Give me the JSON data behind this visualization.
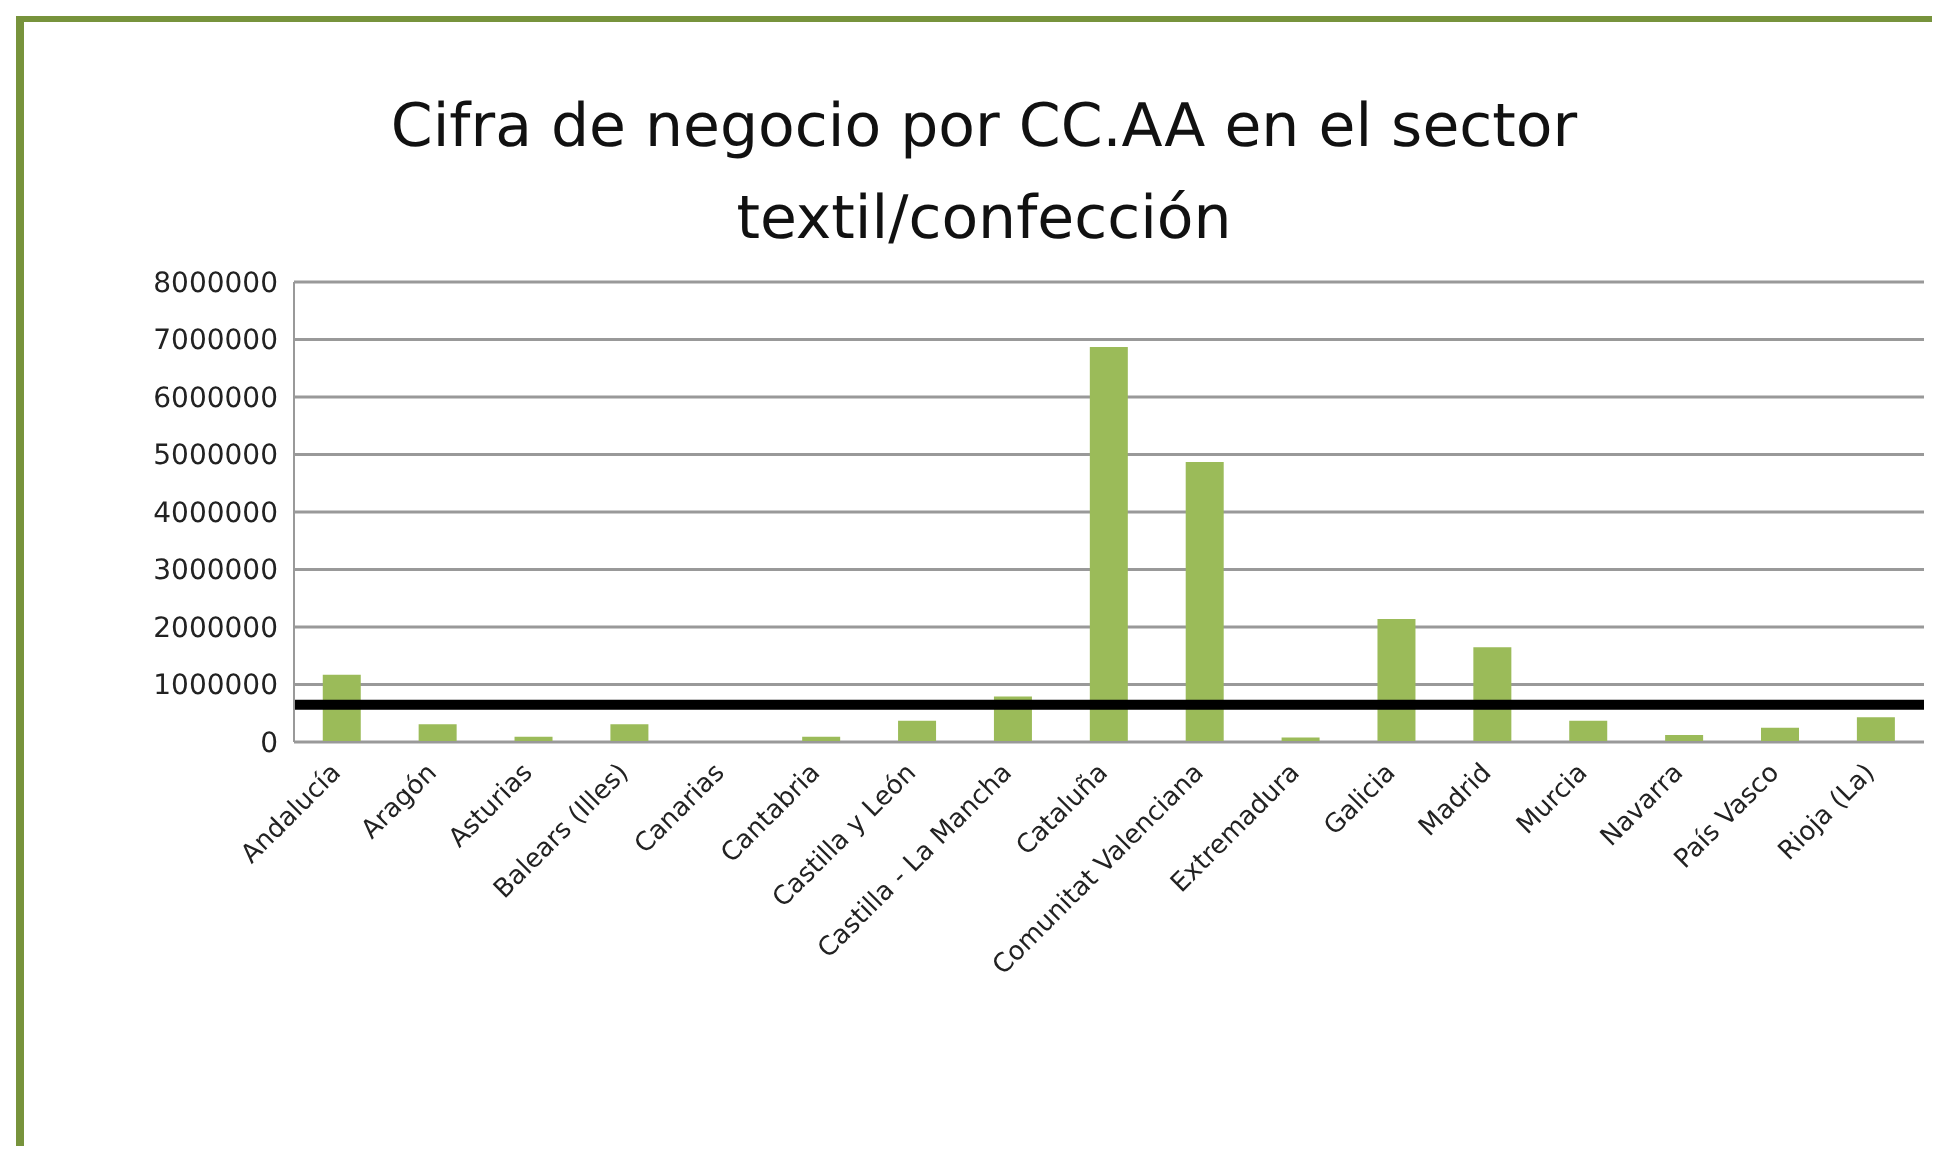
{
  "chart_data": {
    "type": "bar",
    "title": "Cifra de negocio por CC.AA en el sector textil/confección",
    "categories": [
      "Andalucía",
      "Aragón",
      "Asturias",
      "Balears (Illes)",
      "Canarias",
      "Cantabria",
      "Castilla y León",
      "Castilla - La Mancha",
      "Cataluña",
      "Comunitat Valenciana",
      "Extremadura",
      "Galicia",
      "Madrid",
      "Murcia",
      "Navarra",
      "País Vasco",
      "Rioja (La)"
    ],
    "values": [
      1170000,
      310000,
      90000,
      310000,
      0,
      90000,
      370000,
      790000,
      6870000,
      4870000,
      80000,
      2140000,
      1650000,
      370000,
      120000,
      250000,
      430000
    ],
    "color": "#9bbb59",
    "ylim": [
      0,
      8000000
    ],
    "yticks": [
      0,
      1000000,
      2000000,
      3000000,
      4000000,
      5000000,
      6000000,
      7000000,
      8000000
    ],
    "grid": "y",
    "legend": false,
    "ref_lines": [
      {
        "axis": "y",
        "value": 650000,
        "color": "#000000"
      }
    ]
  }
}
